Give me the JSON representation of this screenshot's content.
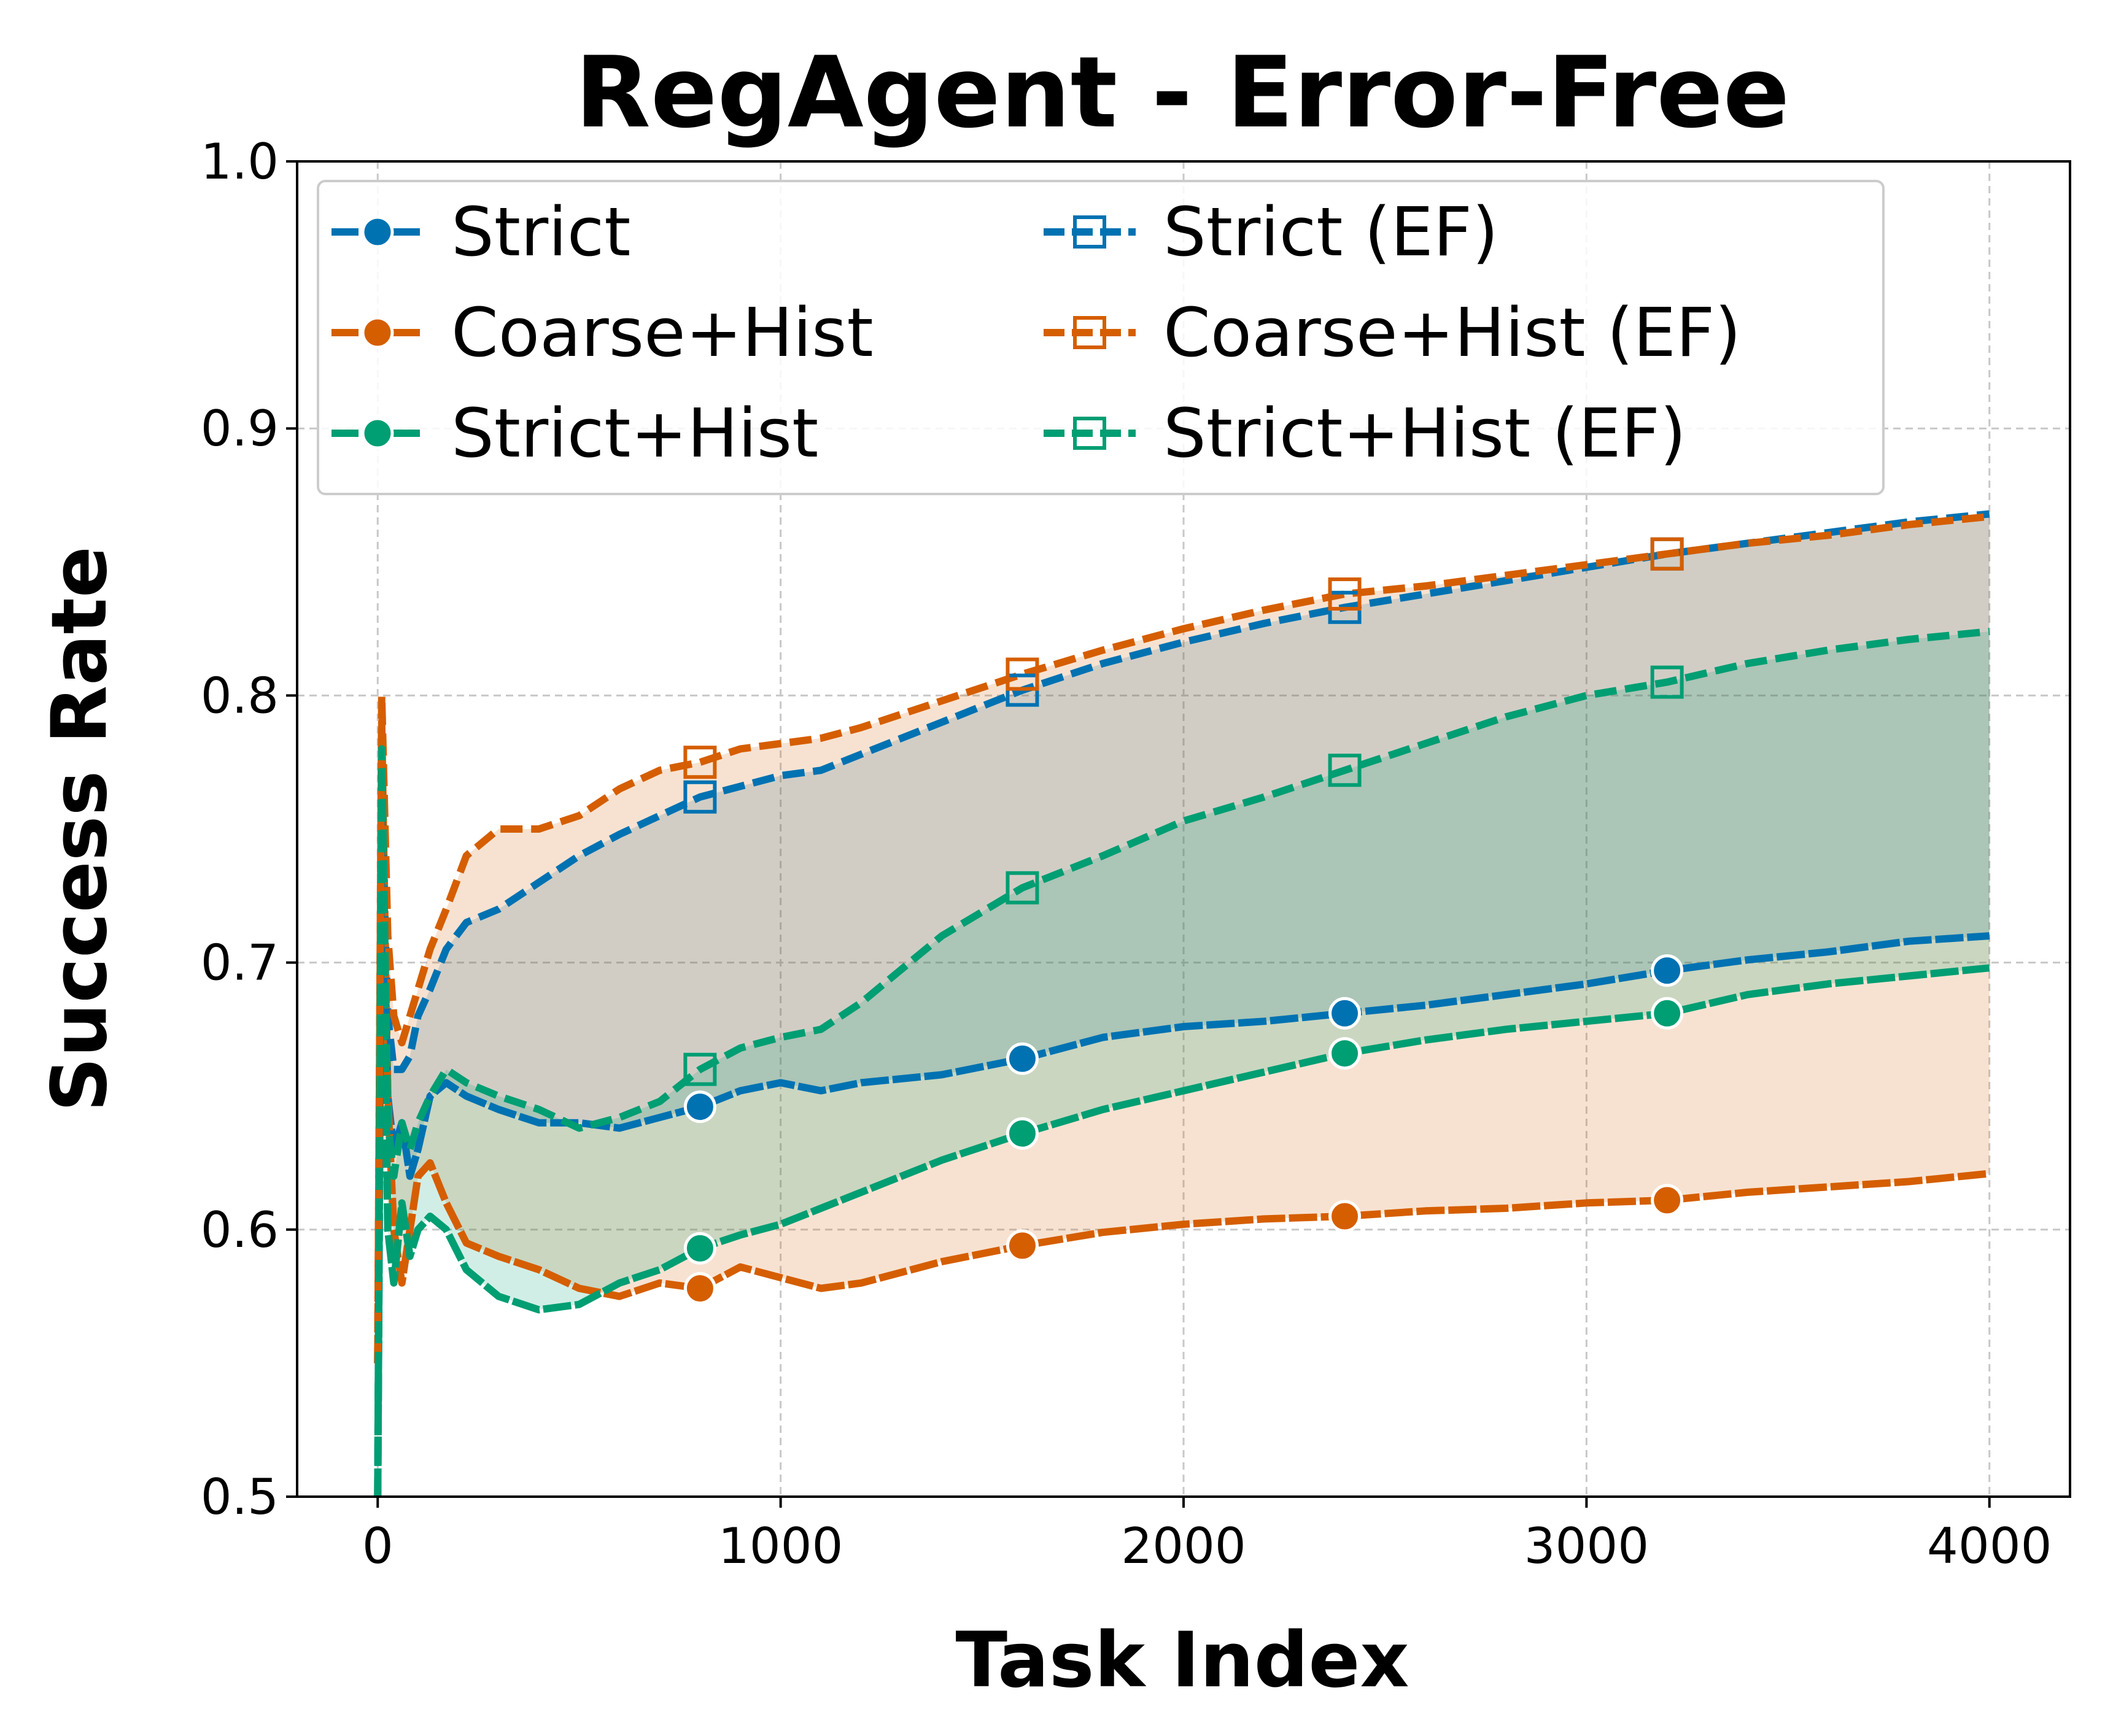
{
  "chart_data": {
    "type": "line",
    "title": "RegAgent - Error-Free",
    "xlabel": "Task Index",
    "ylabel": "Success Rate",
    "xlim": [
      -200,
      4200
    ],
    "ylim": [
      0.5,
      1.0
    ],
    "xticks": [
      0,
      1000,
      2000,
      3000,
      4000
    ],
    "yticks": [
      0.5,
      0.6,
      0.7,
      0.8,
      0.9,
      1.0
    ],
    "xtick_labels": [
      "0",
      "1000",
      "2000",
      "3000",
      "4000"
    ],
    "ytick_labels": [
      "0.5",
      "0.6",
      "0.7",
      "0.8",
      "0.9",
      "1.0"
    ],
    "grid": true,
    "legend_position": "upper-left",
    "legend_columns": 2,
    "colors": {
      "strict": "#0072b2",
      "coarse_hist": "#d55e00",
      "strict_hist": "#009e73"
    },
    "series": [
      {
        "name": "Strict",
        "color": "#0072b2",
        "marker": "circle",
        "style": "dashed-solid",
        "x": [
          0,
          10,
          25,
          40,
          60,
          80,
          100,
          130,
          170,
          220,
          300,
          400,
          500,
          600,
          700,
          800,
          900,
          1000,
          1100,
          1200,
          1400,
          1600,
          1800,
          2000,
          2200,
          2400,
          2600,
          2800,
          3000,
          3200,
          3400,
          3600,
          3800,
          4000
        ],
        "y": [
          0.5,
          0.76,
          0.65,
          0.63,
          0.64,
          0.62,
          0.63,
          0.65,
          0.655,
          0.65,
          0.645,
          0.64,
          0.64,
          0.638,
          0.642,
          0.646,
          0.652,
          0.655,
          0.652,
          0.655,
          0.658,
          0.664,
          0.672,
          0.676,
          0.678,
          0.681,
          0.684,
          0.688,
          0.692,
          0.697,
          0.701,
          0.704,
          0.708,
          0.71
        ],
        "markers_x": [
          800,
          1600,
          2400,
          3200
        ]
      },
      {
        "name": "Coarse+Hist",
        "color": "#d55e00",
        "marker": "circle",
        "style": "dashed-solid",
        "x": [
          0,
          10,
          25,
          40,
          60,
          80,
          100,
          130,
          170,
          220,
          300,
          400,
          500,
          600,
          700,
          800,
          900,
          1000,
          1100,
          1200,
          1400,
          1600,
          1800,
          2000,
          2200,
          2400,
          2600,
          2800,
          3000,
          3200,
          3400,
          3600,
          3800,
          4000
        ],
        "y": [
          0.55,
          0.79,
          0.65,
          0.6,
          0.58,
          0.6,
          0.62,
          0.625,
          0.61,
          0.595,
          0.59,
          0.585,
          0.578,
          0.575,
          0.58,
          0.578,
          0.586,
          0.582,
          0.578,
          0.58,
          0.588,
          0.594,
          0.599,
          0.602,
          0.604,
          0.605,
          0.607,
          0.608,
          0.61,
          0.611,
          0.614,
          0.616,
          0.618,
          0.621
        ],
        "markers_x": [
          800,
          1600,
          2400,
          3200
        ]
      },
      {
        "name": "Strict+Hist",
        "color": "#009e73",
        "marker": "circle",
        "style": "dashed-solid",
        "x": [
          0,
          10,
          25,
          40,
          60,
          80,
          100,
          130,
          170,
          220,
          300,
          400,
          500,
          600,
          700,
          800,
          900,
          1000,
          1100,
          1200,
          1400,
          1600,
          1800,
          2000,
          2200,
          2400,
          2600,
          2800,
          3000,
          3200,
          3400,
          3600,
          3800,
          4000
        ],
        "y": [
          0.5,
          0.77,
          0.6,
          0.58,
          0.61,
          0.59,
          0.6,
          0.605,
          0.6,
          0.585,
          0.575,
          0.57,
          0.572,
          0.58,
          0.585,
          0.593,
          0.598,
          0.602,
          0.608,
          0.614,
          0.626,
          0.636,
          0.645,
          0.652,
          0.659,
          0.666,
          0.671,
          0.675,
          0.678,
          0.681,
          0.688,
          0.692,
          0.695,
          0.698
        ],
        "markers_x": [
          800,
          1600,
          2400,
          3200
        ]
      },
      {
        "name": "Strict (EF)",
        "color": "#0072b2",
        "marker": "open-square",
        "style": "dashed",
        "x": [
          0,
          10,
          25,
          40,
          60,
          80,
          100,
          130,
          170,
          220,
          300,
          400,
          500,
          600,
          700,
          800,
          900,
          1000,
          1100,
          1200,
          1400,
          1600,
          1800,
          2000,
          2200,
          2400,
          2600,
          2800,
          3000,
          3200,
          3400,
          3600,
          3800,
          4000
        ],
        "y": [
          0.55,
          0.76,
          0.68,
          0.66,
          0.66,
          0.665,
          0.68,
          0.69,
          0.705,
          0.715,
          0.72,
          0.73,
          0.74,
          0.748,
          0.755,
          0.762,
          0.766,
          0.77,
          0.772,
          0.778,
          0.79,
          0.802,
          0.812,
          0.82,
          0.827,
          0.833,
          0.838,
          0.843,
          0.848,
          0.853,
          0.857,
          0.861,
          0.865,
          0.868
        ],
        "markers_x": [
          800,
          1600,
          2400,
          3200
        ]
      },
      {
        "name": "Coarse+Hist (EF)",
        "color": "#d55e00",
        "marker": "open-square",
        "style": "dashed",
        "x": [
          0,
          10,
          25,
          40,
          60,
          80,
          100,
          130,
          170,
          220,
          300,
          400,
          500,
          600,
          700,
          800,
          900,
          1000,
          1100,
          1200,
          1400,
          1600,
          1800,
          2000,
          2200,
          2400,
          2600,
          2800,
          3000,
          3200,
          3400,
          3600,
          3800,
          4000
        ],
        "y": [
          0.55,
          0.8,
          0.71,
          0.68,
          0.67,
          0.68,
          0.69,
          0.705,
          0.72,
          0.74,
          0.75,
          0.75,
          0.755,
          0.765,
          0.772,
          0.775,
          0.78,
          0.782,
          0.784,
          0.788,
          0.798,
          0.808,
          0.817,
          0.825,
          0.832,
          0.838,
          0.841,
          0.845,
          0.849,
          0.853,
          0.857,
          0.86,
          0.864,
          0.867
        ],
        "markers_x": [
          800,
          1600,
          2400,
          3200
        ]
      },
      {
        "name": "Strict+Hist (EF)",
        "color": "#009e73",
        "marker": "open-square",
        "style": "dashed",
        "x": [
          0,
          10,
          25,
          40,
          60,
          80,
          100,
          130,
          170,
          220,
          300,
          400,
          500,
          600,
          700,
          800,
          900,
          1000,
          1100,
          1200,
          1400,
          1600,
          1800,
          2000,
          2200,
          2400,
          2600,
          2800,
          3000,
          3200,
          3400,
          3600,
          3800,
          4000
        ],
        "y": [
          0.5,
          0.78,
          0.64,
          0.62,
          0.64,
          0.63,
          0.64,
          0.65,
          0.66,
          0.655,
          0.65,
          0.645,
          0.638,
          0.642,
          0.648,
          0.66,
          0.668,
          0.672,
          0.675,
          0.685,
          0.71,
          0.728,
          0.74,
          0.753,
          0.762,
          0.772,
          0.782,
          0.792,
          0.8,
          0.805,
          0.812,
          0.817,
          0.821,
          0.824
        ],
        "markers_x": [
          800,
          1600,
          2400,
          3200
        ]
      }
    ],
    "fill_between": [
      {
        "lower": "Strict",
        "upper": "Strict (EF)",
        "color": "#0072b2"
      },
      {
        "lower": "Coarse+Hist",
        "upper": "Coarse+Hist (EF)",
        "color": "#d55e00"
      },
      {
        "lower": "Strict+Hist",
        "upper": "Strict+Hist (EF)",
        "color": "#009e73"
      }
    ]
  }
}
